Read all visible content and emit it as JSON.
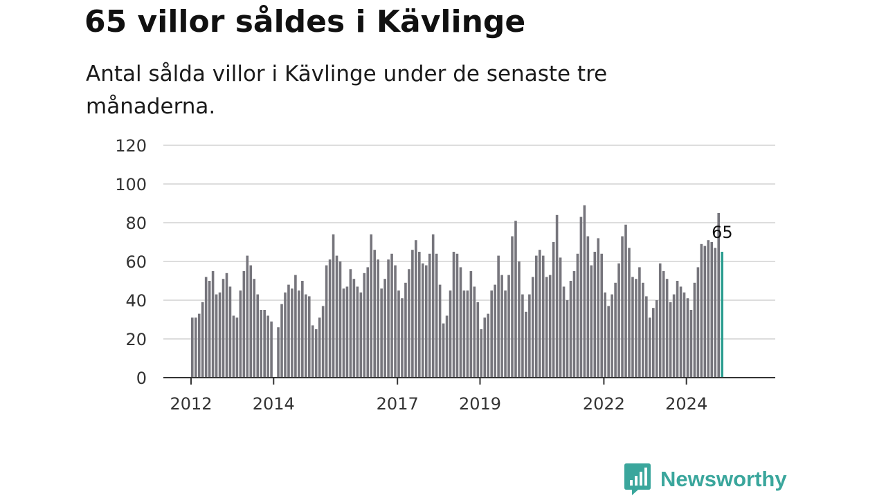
{
  "header": {
    "title": "65 villor såldes i Kävlinge",
    "subtitle": "Antal sålda villor i Kävlinge under de senaste tre månaderna."
  },
  "brand": {
    "name": "Newsworthy",
    "color": "#3aa69c",
    "icon": "bar-chart-speech-bubble-icon"
  },
  "chart_data": {
    "type": "bar",
    "title": "65 villor såldes i Kävlinge",
    "subtitle": "Antal sålda villor i Kävlinge under de senaste tre månaderna.",
    "xlabel": "",
    "ylabel": "",
    "ylim": [
      0,
      120
    ],
    "yticks": [
      0,
      20,
      40,
      60,
      80,
      100,
      120
    ],
    "xticks": [
      "2012",
      "2014",
      "2017",
      "2019",
      "2022",
      "2024"
    ],
    "grid": true,
    "bar_color": "#76757c",
    "highlight_color": "#2a9d8f",
    "highlight_label": "65",
    "series": [
      {
        "values": [
          31,
          31,
          33,
          39,
          52,
          50,
          55,
          43,
          44,
          51,
          54,
          47,
          32,
          31,
          45,
          55,
          63,
          58,
          51,
          43,
          35,
          35,
          32,
          29,
          null,
          26,
          38,
          44,
          48,
          46,
          53,
          45,
          50,
          43,
          42,
          27,
          25,
          31,
          37,
          58,
          61,
          74,
          63,
          60,
          46,
          47,
          56,
          51,
          47,
          44,
          54,
          57,
          74,
          66,
          61,
          46,
          51,
          61,
          64,
          58,
          45,
          41,
          49,
          56,
          66,
          71,
          65,
          59,
          58,
          64,
          74,
          64,
          48,
          28,
          32,
          45,
          65,
          64,
          57,
          45,
          45,
          55,
          47,
          39,
          25,
          31,
          33,
          45,
          48,
          63,
          53,
          45,
          53,
          73,
          81,
          60,
          43,
          34,
          43,
          52,
          63,
          66,
          63,
          52,
          53,
          70,
          84,
          62,
          47,
          40,
          50,
          55,
          64,
          83,
          89,
          73,
          58,
          65,
          72,
          64,
          44,
          37,
          43,
          49,
          59,
          73,
          79,
          67,
          52,
          51,
          57,
          49,
          42,
          31,
          36,
          40,
          59,
          55,
          51,
          39,
          43,
          50,
          47,
          44,
          41,
          35,
          49,
          57,
          69,
          68,
          71,
          70,
          67,
          85,
          65
        ]
      }
    ]
  }
}
